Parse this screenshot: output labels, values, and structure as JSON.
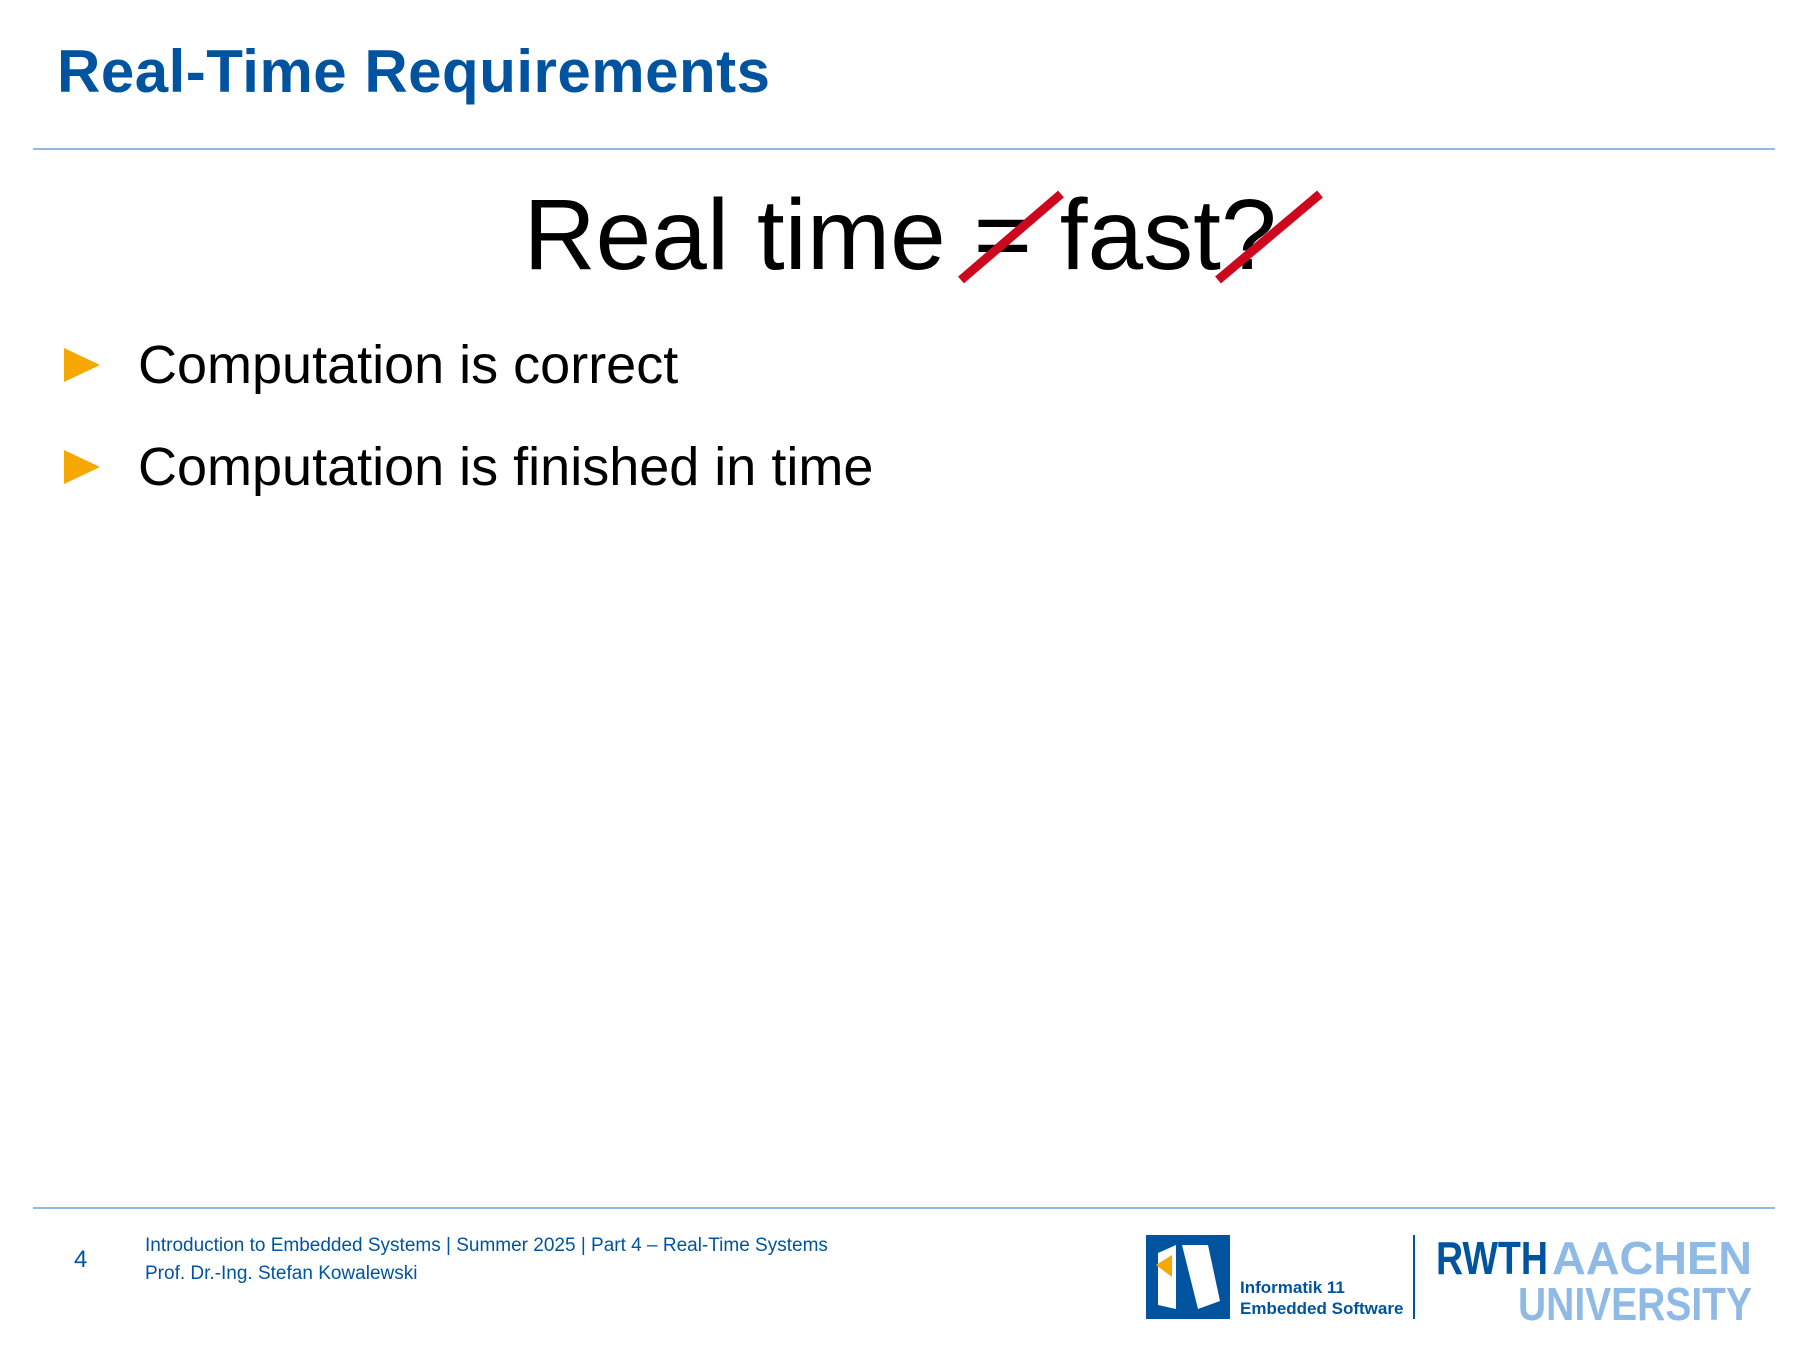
{
  "slide": {
    "title": "Real-Time Requirements",
    "headline": "Real time = fast?",
    "bullets": [
      {
        "icon": "triangle-bullet-icon",
        "text": "Computation is correct"
      },
      {
        "icon": "triangle-bullet-icon",
        "text": "Computation is finished in time"
      }
    ]
  },
  "footer": {
    "page_number": "4",
    "course_line": "Introduction to Embedded Systems | Summer 2025 | Part 4 – Real-Time Systems",
    "author_line": "Prof. Dr.-Ing. Stefan Kowalewski"
  },
  "logos": {
    "chair_line1": "Informatik 11",
    "chair_line2": "Embedded Software",
    "university_part1": "RWTH",
    "university_part2": "AACHEN",
    "university_part3": "UNIVERSITY"
  },
  "colors": {
    "title_blue": "#00549f",
    "light_blue": "#8ebae5",
    "bullet_orange": "#f6a800",
    "strike_red": "#cc071e"
  }
}
